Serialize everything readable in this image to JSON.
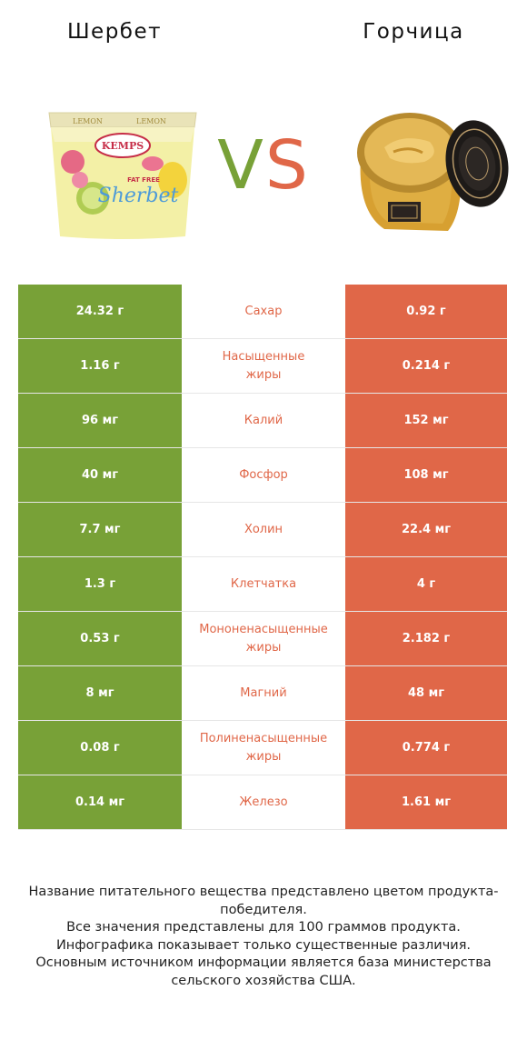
{
  "products": {
    "left": {
      "name": "Шербет",
      "color": "#78a137",
      "icon": "sherbet-tub-image"
    },
    "right": {
      "name": "Горчица",
      "color": "#e06748",
      "icon": "mustard-jar-image"
    }
  },
  "vs": {
    "v": "V",
    "s": "S"
  },
  "sherbet_label": {
    "flavor": "LEMON",
    "brand": "KEMPS",
    "fatfree": "FAT FREE",
    "name": "Sherbet"
  },
  "rows": [
    {
      "left": "24.32 г",
      "name": "Сахар",
      "right": "0.92 г",
      "winner": "right"
    },
    {
      "left": "1.16 г",
      "name": "Насыщенные\nжиры",
      "right": "0.214 г",
      "winner": "right"
    },
    {
      "left": "96 мг",
      "name": "Калий",
      "right": "152 мг",
      "winner": "right"
    },
    {
      "left": "40 мг",
      "name": "Фосфор",
      "right": "108 мг",
      "winner": "right"
    },
    {
      "left": "7.7 мг",
      "name": "Холин",
      "right": "22.4 мг",
      "winner": "right"
    },
    {
      "left": "1.3 г",
      "name": "Клетчатка",
      "right": "4 г",
      "winner": "right"
    },
    {
      "left": "0.53 г",
      "name": "Мононенасыщенные\nжиры",
      "right": "2.182 г",
      "winner": "right"
    },
    {
      "left": "8 мг",
      "name": "Магний",
      "right": "48 мг",
      "winner": "right"
    },
    {
      "left": "0.08 г",
      "name": "Полиненасыщенные\nжиры",
      "right": "0.774 г",
      "winner": "right"
    },
    {
      "left": "0.14 мг",
      "name": "Железо",
      "right": "1.61 мг",
      "winner": "right"
    }
  ],
  "footer": {
    "line1": "Название питательного вещества представлено цветом продукта-победителя.",
    "line2": "Все значения представлены для 100 граммов продукта.",
    "line3": "Инфографика показывает только существенные различия.",
    "line4": "Основным источником информации является база министерства сельского хозяйства США."
  }
}
